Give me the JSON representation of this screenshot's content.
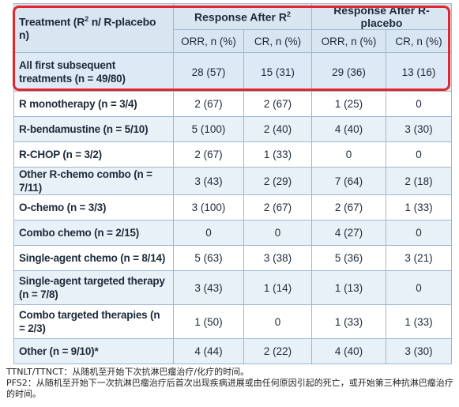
{
  "table": {
    "header": {
      "treatment_main": "Treatment (R",
      "treatment_sup": "2",
      "treatment_rest": " n/ R-placebo n)",
      "group1_main": "Response After R",
      "group1_sup": "2",
      "group2": "Response After R-placebo",
      "orr1": "ORR, n (%)",
      "cr1": "CR, n (%)",
      "orr2": "ORR, n (%)",
      "cr2": "CR, n (%)"
    },
    "rows": [
      {
        "label": "All first subsequent treatments (n = 49/80)",
        "orr_r2": "28 (57)",
        "cr_r2": "15 (31)",
        "orr_pl": "29 (36)",
        "cr_pl": "13 (16)"
      },
      {
        "label": "R monotherapy (n = 3/4)",
        "orr_r2": "2 (67)",
        "cr_r2": "2 (67)",
        "orr_pl": "1 (25)",
        "cr_pl": "0"
      },
      {
        "label": "R-bendamustine (n = 5/10)",
        "orr_r2": "5 (100)",
        "cr_r2": "2 (40)",
        "orr_pl": "4 (40)",
        "cr_pl": "3 (30)"
      },
      {
        "label": "R-CHOP (n = 3/2)",
        "orr_r2": "2 (67)",
        "cr_r2": "1 (33)",
        "orr_pl": "0",
        "cr_pl": "0"
      },
      {
        "label": "Other R-chemo combo (n = 7/11)",
        "orr_r2": "3 (43)",
        "cr_r2": "2 (29)",
        "orr_pl": "7 (64)",
        "cr_pl": "2 (18)"
      },
      {
        "label": "O-chemo (n = 3/3)",
        "orr_r2": "3 (100)",
        "cr_r2": "2 (67)",
        "orr_pl": "2 (67)",
        "cr_pl": "1 (33)"
      },
      {
        "label": "Combo chemo (n = 2/15)",
        "orr_r2": "0",
        "cr_r2": "0",
        "orr_pl": "4 (27)",
        "cr_pl": "0"
      },
      {
        "label": "Single-agent chemo (n = 8/14)",
        "orr_r2": "5 (63)",
        "cr_r2": "3 (38)",
        "orr_pl": "5 (36)",
        "cr_pl": "3 (21)"
      },
      {
        "label": "Single-agent targeted therapy (n = 7/8)",
        "orr_r2": "3 (43)",
        "cr_r2": "1 (14)",
        "orr_pl": "1 (13)",
        "cr_pl": "0"
      },
      {
        "label": "Combo targeted therapies (n = 2/3)",
        "orr_r2": "1 (50)",
        "cr_r2": "0",
        "orr_pl": "1 (33)",
        "cr_pl": "1 (33)"
      },
      {
        "label": "Other (n = 9/10)*",
        "orr_r2": "4 (44)",
        "cr_r2": "2 (22)",
        "orr_pl": "4 (40)",
        "cr_pl": "3 (30)"
      }
    ]
  },
  "notes": {
    "line1": "TTNLT/TTNCT：从随机至开始下次抗淋巴瘤治疗/化疗的时间。",
    "line2": "PFS2：从随机至开始下一次抗淋巴瘤治疗后首次出现疾病进展或由任何原因引起的死亡，或开始第三种抗淋巴瘤治疗的时间。"
  },
  "colors": {
    "header_bg": "#d8e6f2",
    "alt_row_bg": "#e9f1f8",
    "grid": "#9fb7cf",
    "highlight": "#e3262b"
  }
}
